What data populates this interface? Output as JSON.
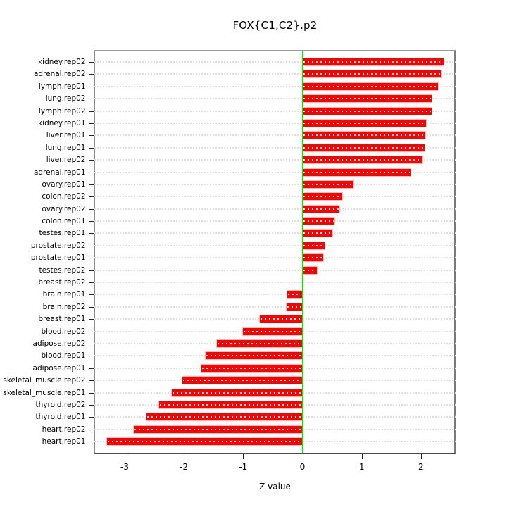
{
  "chart_data": {
    "type": "bar",
    "orientation": "horizontal",
    "title": "FOX{C1,C2}.p2",
    "xlabel": "Z-value",
    "ylabel": "",
    "categories": [
      "kidney.rep02",
      "adrenal.rep02",
      "lymph.rep01",
      "lung.rep02",
      "lymph.rep02",
      "kidney.rep01",
      "liver.rep01",
      "lung.rep01",
      "liver.rep02",
      "adrenal.rep01",
      "ovary.rep01",
      "colon.rep02",
      "ovary.rep02",
      "colon.rep01",
      "testes.rep01",
      "prostate.rep02",
      "prostate.rep01",
      "testes.rep02",
      "breast.rep02",
      "brain.rep01",
      "brain.rep02",
      "breast.rep01",
      "blood.rep02",
      "adipose.rep02",
      "blood.rep01",
      "adipose.rep01",
      "skeletal_muscle.rep02",
      "skeletal_muscle.rep01",
      "thyroid.rep02",
      "thyroid.rep01",
      "heart.rep02",
      "heart.rep01"
    ],
    "values": [
      2.38,
      2.34,
      2.29,
      2.18,
      2.18,
      2.08,
      2.07,
      2.06,
      2.02,
      1.82,
      0.86,
      0.67,
      0.62,
      0.54,
      0.5,
      0.38,
      0.35,
      0.24,
      0.0,
      -0.26,
      -0.27,
      -0.72,
      -1.0,
      -1.44,
      -1.63,
      -1.7,
      -2.02,
      -2.2,
      -2.42,
      -2.63,
      -2.84,
      -3.3
    ],
    "xticks": [
      -3,
      -2,
      -1,
      0,
      1,
      2
    ],
    "xtick_labels": [
      "-3",
      "-2",
      "-1",
      "0",
      "1",
      "2"
    ],
    "xlim": [
      -3.52,
      2.59
    ],
    "grid": "horizontal dotted per category",
    "legend": "none",
    "zero_reference_line": 0,
    "colors": {
      "bar": "#ff0000",
      "bar_center_dash": "#ffffff",
      "zero_line": "#00ee00",
      "gridline": "#dedede",
      "box": "#808080",
      "text": "#000000",
      "background": "#ffffff"
    }
  }
}
